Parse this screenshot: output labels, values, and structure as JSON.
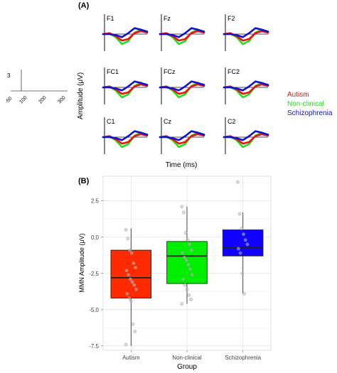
{
  "panel_a": {
    "label": "(A)",
    "ylabel": "Amplitude (μV)",
    "xlabel": "Time (ms)",
    "legend": [
      {
        "name": "Autism",
        "color": "#ee1111"
      },
      {
        "name": "Non-clinical",
        "color": "#22dd22"
      },
      {
        "name": "Schizophrenia",
        "color": "#1111cc"
      }
    ],
    "scale_bar": {
      "y_tick": "3",
      "x_ticks": [
        "-50",
        "100",
        "200",
        "300"
      ]
    },
    "electrodes": [
      [
        "F1",
        "Fz",
        "F2"
      ],
      [
        "FC1",
        "FCz",
        "FC2"
      ],
      [
        "C1",
        "Cz",
        "C2"
      ]
    ]
  },
  "chart_data": [
    {
      "type": "line",
      "panel": "A",
      "title": "",
      "xlabel": "Time (ms)",
      "ylabel": "Amplitude (μV)",
      "x": [
        -50,
        0,
        50,
        100,
        150,
        200,
        250,
        300
      ],
      "series": [
        {
          "name": "Autism",
          "color": "#ee1111",
          "values": [
            0,
            0.2,
            -0.4,
            -1.3,
            -1.0,
            0.2,
            0.6,
            0.3
          ]
        },
        {
          "name": "Non-clinical",
          "color": "#22dd22",
          "values": [
            0,
            0.1,
            -0.6,
            -2.0,
            -1.4,
            0.3,
            0.9,
            0.4
          ]
        },
        {
          "name": "Schizophrenia",
          "color": "#1111cc",
          "values": [
            0,
            0,
            -0.2,
            -0.6,
            0.2,
            1.2,
            0.9,
            0.5
          ]
        }
      ]
    },
    {
      "type": "box",
      "panel": "B",
      "label": "(B)",
      "title": "",
      "xlabel": "Group",
      "ylabel": "MMN Amplitude (μV)",
      "ylim": [
        -7.8,
        4.2
      ],
      "yticks": [
        -7.5,
        -5.0,
        -2.5,
        0.0,
        2.5
      ],
      "ytick_labels": [
        "-7.5",
        "-5.0",
        "-2.5",
        "0.0",
        "2.5"
      ],
      "grid": true,
      "categories": [
        "Autism",
        "Non-clinical",
        "Schizophrenia"
      ],
      "boxes": [
        {
          "name": "Autism",
          "color": "#ff2a00",
          "whisker_low": -7.5,
          "q1": -4.2,
          "median": -2.8,
          "q3": -0.9,
          "whisker_high": 0.6,
          "points": [
            0.5,
            -0.1,
            -0.9,
            -1.1,
            -1.8,
            -2.1,
            -2.3,
            -2.6,
            -2.9,
            -3.1,
            -3.3,
            -3.6,
            -3.9,
            -4.2,
            -4.4,
            -6.0,
            -6.5,
            -7.4
          ]
        },
        {
          "name": "Non-clinical",
          "color": "#00ee00",
          "whisker_low": -4.6,
          "q1": -3.2,
          "median": -1.3,
          "q3": -0.3,
          "whisker_high": 2.1,
          "points": [
            2.1,
            1.7,
            0.3,
            -0.2,
            -0.5,
            -0.9,
            -1.1,
            -1.4,
            -1.6,
            -1.9,
            -2.2,
            -2.6,
            -2.9,
            -3.3,
            -3.6,
            -4.0,
            -4.3,
            -4.6
          ]
        },
        {
          "name": "Schizophrenia",
          "color": "#1000ff",
          "whisker_low": -3.9,
          "q1": -1.3,
          "median": -0.7,
          "q3": 0.5,
          "whisker_high": 1.7,
          "points": [
            3.8,
            1.6,
            0.6,
            0.2,
            -0.2,
            -0.5,
            -0.8,
            -1.1,
            -2.5,
            -3.9
          ]
        }
      ]
    }
  ]
}
